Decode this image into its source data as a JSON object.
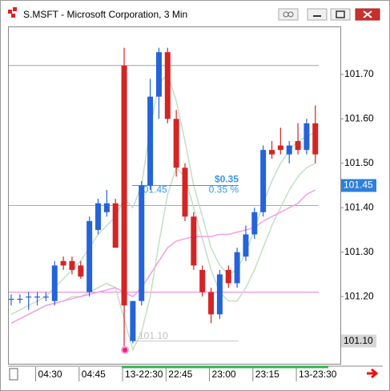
{
  "chart_data": {
    "type": "candlestick",
    "title": "S.MSFT - Microsoft Corporation, 3 Min",
    "categories": [
      null,
      null,
      null,
      "04:30",
      null,
      null,
      null,
      null,
      "04:45",
      null,
      null,
      null,
      null,
      "13-22:30",
      null,
      null,
      null,
      null,
      "22:45",
      null,
      null,
      null,
      null,
      "23:00",
      null,
      null,
      null,
      null,
      "23:15",
      null,
      null,
      null,
      null,
      "13-23:30",
      null,
      null
    ],
    "open": [
      101.195,
      101.195,
      101.2,
      101.2,
      101.2,
      101.19,
      101.28,
      101.28,
      101.27,
      101.21,
      101.35,
      101.39,
      101.41,
      101.72,
      101.1,
      101.19,
      101.45,
      101.65,
      101.75,
      101.6,
      101.49,
      101.38,
      101.26,
      101.21,
      101.16,
      101.26,
      101.23,
      101.29,
      101.34,
      101.39,
      101.53,
      101.54,
      101.52,
      101.55,
      101.53,
      101.59
    ],
    "high": [
      101.205,
      101.205,
      101.21,
      101.21,
      101.21,
      101.28,
      101.29,
      101.29,
      101.28,
      101.38,
      101.42,
      101.44,
      101.42,
      101.76,
      101.19,
      101.46,
      101.69,
      101.76,
      101.76,
      101.62,
      101.5,
      101.39,
      101.27,
      101.22,
      101.26,
      101.27,
      101.31,
      101.36,
      101.4,
      101.54,
      101.55,
      101.58,
      101.55,
      101.59,
      101.6,
      101.63
    ],
    "low": [
      101.18,
      101.185,
      101.17,
      101.18,
      101.19,
      101.18,
      101.26,
      101.25,
      101.24,
      101.2,
      101.34,
      101.38,
      101.31,
      101.08,
      101.095,
      101.18,
      101.44,
      101.6,
      101.59,
      101.47,
      101.37,
      101.26,
      101.2,
      101.14,
      101.15,
      101.22,
      101.22,
      101.28,
      101.33,
      101.38,
      101.51,
      101.52,
      101.5,
      101.52,
      101.52,
      101.5
    ],
    "close": [
      101.195,
      101.195,
      101.2,
      101.2,
      101.2,
      101.27,
      101.27,
      101.26,
      101.245,
      101.37,
      101.41,
      101.41,
      101.31,
      101.18,
      101.19,
      101.45,
      101.65,
      101.75,
      101.6,
      101.49,
      101.38,
      101.27,
      101.21,
      101.16,
      101.25,
      101.23,
      101.3,
      101.34,
      101.39,
      101.53,
      101.52,
      101.53,
      101.54,
      101.53,
      101.59,
      101.52
    ],
    "up_color": "#2563d8",
    "down_color": "#d42424",
    "series": [
      {
        "color": "#c4dfc4",
        "values": [
          101.16,
          101.17,
          101.18,
          101.19,
          101.2,
          101.22,
          101.24,
          101.26,
          101.28,
          101.31,
          101.34,
          101.36,
          101.38,
          101.42,
          101.4,
          101.45,
          101.58,
          101.68,
          101.7,
          101.64,
          101.55,
          101.45,
          101.38,
          101.31,
          101.27,
          101.25,
          101.26,
          101.3,
          101.35,
          101.41,
          101.46,
          101.5,
          101.53,
          101.55,
          101.56,
          101.57
        ]
      },
      {
        "color": "#c4dfc4",
        "values": [
          101.14,
          101.15,
          101.16,
          101.17,
          101.18,
          101.185,
          101.19,
          101.2,
          101.2,
          101.21,
          101.22,
          101.23,
          101.22,
          101.15,
          101.08,
          101.12,
          101.2,
          101.32,
          101.43,
          101.49,
          101.47,
          101.4,
          101.33,
          101.26,
          101.21,
          101.19,
          101.19,
          101.22,
          101.26,
          101.31,
          101.36,
          101.4,
          101.44,
          101.47,
          101.49,
          101.5
        ]
      },
      {
        "color": "#f2a0e6",
        "values": [
          101.14,
          101.15,
          101.16,
          101.17,
          101.18,
          101.185,
          101.19,
          101.195,
          101.2,
          101.205,
          101.21,
          101.215,
          101.22,
          101.21,
          101.2,
          101.22,
          101.25,
          101.28,
          101.31,
          101.325,
          101.33,
          101.335,
          101.335,
          101.335,
          101.34,
          101.34,
          101.345,
          101.35,
          101.355,
          101.37,
          101.38,
          101.39,
          101.4,
          101.41,
          101.43,
          101.44
        ]
      }
    ],
    "hlines": [
      {
        "value": 101.72,
        "color": "#a0a0a0"
      },
      {
        "value": 101.405,
        "color": "#f07ae0"
      },
      {
        "value": 101.21,
        "color": "#f07ae0"
      }
    ],
    "ylim": [
      101.047,
      101.808
    ],
    "yticks": [
      {
        "value": 101.2,
        "label": "101.20"
      },
      {
        "value": 101.3,
        "label": "101.30"
      },
      {
        "value": 101.4,
        "label": "101.40"
      },
      {
        "value": 101.5,
        "label": "101.50"
      },
      {
        "value": 101.6,
        "label": "101.60"
      },
      {
        "value": 101.7,
        "label": "101.70"
      }
    ],
    "measure": {
      "high": 101.45,
      "low": {
        "value": 101.1,
        "label": "101.10"
      },
      "change": {
        "value": 0.35,
        "label": "$0.35"
      },
      "change_pct": {
        "value": 0.35,
        "label": "0.35 %"
      },
      "color": "#3a96f0"
    },
    "price_markers": [
      {
        "price": 101.45,
        "color": "#2f7fdc",
        "text_color": "#ffffff"
      },
      {
        "price": {
          "value": 101.1,
          "label": "101.10"
        },
        "color": "#d6d6d6",
        "text_color": "#000000"
      }
    ]
  }
}
